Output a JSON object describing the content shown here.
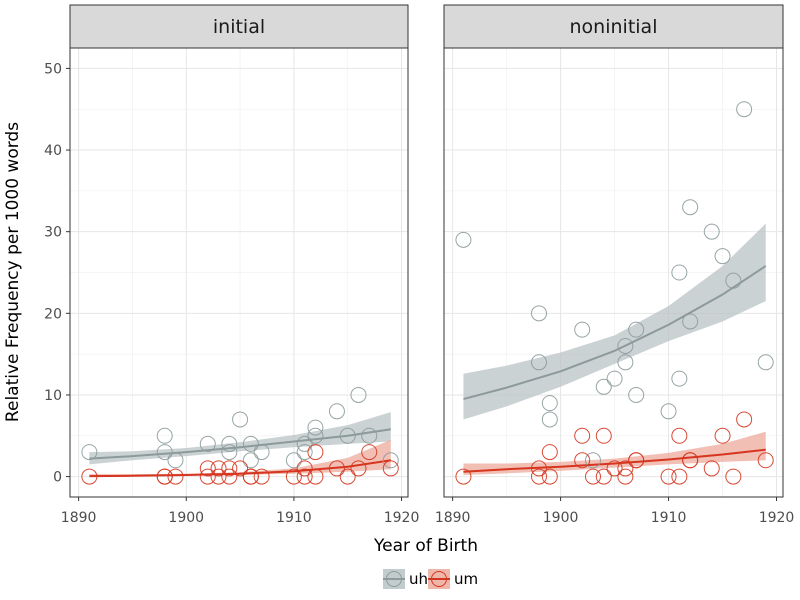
{
  "chart_data": {
    "type": "scatter",
    "xlabel": "Year of Birth",
    "ylabel": "Relative Frequency per 1000 words",
    "xlim": [
      1889.2,
      1920.6
    ],
    "ylim": [
      -2.5,
      52.5
    ],
    "x_ticks": [
      1890,
      1900,
      1910,
      1920
    ],
    "y_ticks": [
      0,
      10,
      20,
      30,
      40,
      50
    ],
    "grid": true,
    "legend_position": "bottom",
    "colors": {
      "uh": "#8c9a9b",
      "um": "#d6351f",
      "uh_band": "#b9c3c4",
      "um_band": "#ecaa9b"
    },
    "legend": [
      {
        "key": "uh",
        "label": "uh"
      },
      {
        "key": "um",
        "label": "um"
      }
    ],
    "panels": [
      {
        "title": "initial",
        "series": [
          {
            "name": "uh",
            "points": [
              [
                1891,
                3
              ],
              [
                1898,
                5
              ],
              [
                1898,
                3
              ],
              [
                1899,
                2
              ],
              [
                1902,
                4
              ],
              [
                1904,
                4
              ],
              [
                1904,
                3
              ],
              [
                1905,
                7
              ],
              [
                1906,
                4
              ],
              [
                1906,
                2
              ],
              [
                1907,
                3
              ],
              [
                1910,
                2
              ],
              [
                1911,
                4
              ],
              [
                1911,
                3
              ],
              [
                1912,
                5
              ],
              [
                1912,
                6
              ],
              [
                1914,
                8
              ],
              [
                1915,
                5
              ],
              [
                1916,
                10
              ],
              [
                1917,
                5
              ],
              [
                1919,
                2
              ]
            ],
            "trend": [
              [
                1891,
                2.2
              ],
              [
                1895,
                2.5
              ],
              [
                1900,
                3.0
              ],
              [
                1905,
                3.6
              ],
              [
                1910,
                4.3
              ],
              [
                1915,
                5.0
              ],
              [
                1919,
                5.8
              ]
            ],
            "band_lower": [
              [
                1891,
                1.5
              ],
              [
                1895,
                2.0
              ],
              [
                1900,
                2.5
              ],
              [
                1905,
                3.1
              ],
              [
                1910,
                3.6
              ],
              [
                1915,
                4.0
              ],
              [
                1919,
                4.3
              ]
            ],
            "band_upper": [
              [
                1891,
                3.0
              ],
              [
                1895,
                3.1
              ],
              [
                1900,
                3.5
              ],
              [
                1905,
                4.2
              ],
              [
                1910,
                5.1
              ],
              [
                1915,
                6.3
              ],
              [
                1919,
                7.9
              ]
            ]
          },
          {
            "name": "um",
            "points": [
              [
                1891,
                0
              ],
              [
                1898,
                0
              ],
              [
                1898,
                0
              ],
              [
                1899,
                0
              ],
              [
                1902,
                1
              ],
              [
                1902,
                0
              ],
              [
                1903,
                0
              ],
              [
                1903,
                1
              ],
              [
                1904,
                1
              ],
              [
                1904,
                0
              ],
              [
                1905,
                1
              ],
              [
                1906,
                0
              ],
              [
                1906,
                0
              ],
              [
                1907,
                0
              ],
              [
                1910,
                0
              ],
              [
                1911,
                1
              ],
              [
                1911,
                0
              ],
              [
                1912,
                0
              ],
              [
                1912,
                3
              ],
              [
                1914,
                1
              ],
              [
                1915,
                0
              ],
              [
                1916,
                1
              ],
              [
                1917,
                3
              ],
              [
                1919,
                1
              ]
            ],
            "trend": [
              [
                1891,
                0.05
              ],
              [
                1895,
                0.1
              ],
              [
                1900,
                0.2
              ],
              [
                1905,
                0.35
              ],
              [
                1910,
                0.65
              ],
              [
                1915,
                1.2
              ],
              [
                1919,
                2.0
              ]
            ],
            "band_lower": [
              [
                1891,
                0.0
              ],
              [
                1895,
                0.05
              ],
              [
                1900,
                0.1
              ],
              [
                1905,
                0.2
              ],
              [
                1910,
                0.35
              ],
              [
                1915,
                0.6
              ],
              [
                1919,
                0.9
              ]
            ],
            "band_upper": [
              [
                1891,
                0.3
              ],
              [
                1895,
                0.3
              ],
              [
                1900,
                0.35
              ],
              [
                1905,
                0.55
              ],
              [
                1910,
                1.0
              ],
              [
                1915,
                2.3
              ],
              [
                1919,
                4.5
              ]
            ]
          }
        ]
      },
      {
        "title": "noninitial",
        "series": [
          {
            "name": "uh",
            "points": [
              [
                1891,
                29
              ],
              [
                1898,
                20
              ],
              [
                1898,
                14
              ],
              [
                1899,
                9
              ],
              [
                1899,
                7
              ],
              [
                1902,
                18
              ],
              [
                1903,
                2
              ],
              [
                1904,
                11
              ],
              [
                1905,
                12
              ],
              [
                1906,
                16
              ],
              [
                1906,
                14
              ],
              [
                1907,
                18
              ],
              [
                1907,
                10
              ],
              [
                1910,
                8
              ],
              [
                1911,
                25
              ],
              [
                1911,
                12
              ],
              [
                1912,
                33
              ],
              [
                1912,
                19
              ],
              [
                1914,
                30
              ],
              [
                1915,
                27
              ],
              [
                1916,
                24
              ],
              [
                1917,
                45
              ],
              [
                1919,
                14
              ]
            ],
            "trend": [
              [
                1891,
                9.5
              ],
              [
                1895,
                10.9
              ],
              [
                1900,
                12.9
              ],
              [
                1905,
                15.4
              ],
              [
                1910,
                18.6
              ],
              [
                1915,
                22.3
              ],
              [
                1919,
                25.8
              ]
            ],
            "band_lower": [
              [
                1891,
                7.0
              ],
              [
                1895,
                8.6
              ],
              [
                1900,
                11.0
              ],
              [
                1905,
                13.8
              ],
              [
                1910,
                16.6
              ],
              [
                1915,
                19.0
              ],
              [
                1919,
                21.5
              ]
            ],
            "band_upper": [
              [
                1891,
                12.6
              ],
              [
                1895,
                13.6
              ],
              [
                1900,
                15.2
              ],
              [
                1905,
                17.3
              ],
              [
                1910,
                20.9
              ],
              [
                1915,
                25.8
              ],
              [
                1919,
                31.0
              ]
            ]
          },
          {
            "name": "um",
            "points": [
              [
                1891,
                0
              ],
              [
                1898,
                1
              ],
              [
                1898,
                0
              ],
              [
                1899,
                3
              ],
              [
                1899,
                0
              ],
              [
                1902,
                5
              ],
              [
                1902,
                2
              ],
              [
                1903,
                0
              ],
              [
                1904,
                5
              ],
              [
                1904,
                0
              ],
              [
                1905,
                1
              ],
              [
                1906,
                1
              ],
              [
                1906,
                0
              ],
              [
                1907,
                2
              ],
              [
                1907,
                2
              ],
              [
                1910,
                0
              ],
              [
                1911,
                5
              ],
              [
                1911,
                0
              ],
              [
                1912,
                2
              ],
              [
                1912,
                2
              ],
              [
                1914,
                1
              ],
              [
                1915,
                5
              ],
              [
                1916,
                0
              ],
              [
                1917,
                7
              ],
              [
                1919,
                2
              ]
            ],
            "trend": [
              [
                1891,
                0.6
              ],
              [
                1895,
                0.9
              ],
              [
                1900,
                1.2
              ],
              [
                1905,
                1.6
              ],
              [
                1910,
                2.1
              ],
              [
                1915,
                2.7
              ],
              [
                1919,
                3.3
              ]
            ],
            "band_lower": [
              [
                1891,
                0.2
              ],
              [
                1895,
                0.4
              ],
              [
                1900,
                0.7
              ],
              [
                1905,
                1.1
              ],
              [
                1910,
                1.5
              ],
              [
                1915,
                1.8
              ],
              [
                1919,
                2.0
              ]
            ],
            "band_upper": [
              [
                1891,
                1.6
              ],
              [
                1895,
                1.6
              ],
              [
                1900,
                1.8
              ],
              [
                1905,
                2.2
              ],
              [
                1910,
                2.9
              ],
              [
                1915,
                4.0
              ],
              [
                1919,
                5.5
              ]
            ]
          }
        ]
      }
    ]
  }
}
